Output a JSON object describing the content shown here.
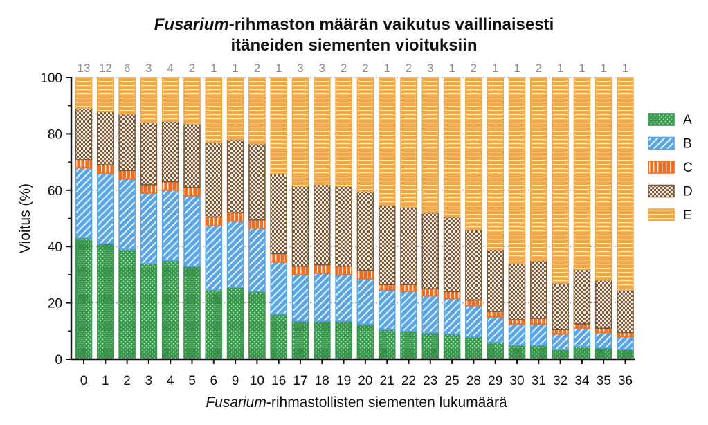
{
  "title_line1_italic": "Fusarium",
  "title_line1_rest": "-rihmaston määrän vaikutus vaillinaisesti",
  "title_line2": "itäneiden siementen vioituksiin",
  "chart_data": {
    "type": "bar",
    "stacked": true,
    "categories": [
      "0",
      "1",
      "2",
      "3",
      "4",
      "5",
      "6",
      "9",
      "10",
      "16",
      "17",
      "18",
      "19",
      "20",
      "21",
      "22",
      "23",
      "25",
      "28",
      "29",
      "30",
      "31",
      "32",
      "34",
      "35",
      "36"
    ],
    "counts": [
      "13",
      "12",
      "6",
      "3",
      "4",
      "2",
      "1",
      "1",
      "2",
      "1",
      "3",
      "3",
      "2",
      "2",
      "1",
      "2",
      "3",
      "1",
      "2",
      "1",
      "1",
      "2",
      "1",
      "1",
      "1",
      "1"
    ],
    "series": [
      {
        "name": "A",
        "color": "#3a9a4e",
        "pattern": "dots",
        "values": [
          43,
          41,
          39,
          34,
          35,
          33,
          24.5,
          25.5,
          24,
          16,
          13.5,
          13.5,
          13.5,
          12.5,
          10.5,
          10,
          9.5,
          9,
          8,
          6,
          5,
          5,
          3.5,
          4.5,
          4,
          3.5
        ]
      },
      {
        "name": "B",
        "color": "#5aa5e8",
        "pattern": "diagonal",
        "values": [
          25,
          25,
          25,
          25,
          25,
          25,
          23,
          23.5,
          22.5,
          18.5,
          16.5,
          17,
          16.5,
          16,
          14,
          14,
          13,
          12.5,
          11,
          9,
          7.5,
          7.5,
          5.5,
          6.5,
          5.5,
          4.5
        ]
      },
      {
        "name": "C",
        "color": "#f07020",
        "pattern": "vertical",
        "values": [
          3,
          3,
          3,
          3,
          3,
          3,
          3,
          3,
          3,
          3,
          3,
          3,
          3,
          3,
          2,
          2.5,
          2.5,
          2.5,
          2,
          2,
          1.5,
          2,
          1.5,
          1.5,
          1.5,
          1.5
        ]
      },
      {
        "name": "D",
        "color": "#7a5a3a",
        "pattern": "checker",
        "values": [
          18,
          19,
          20,
          22,
          21.5,
          22.5,
          26.5,
          26,
          27,
          28.5,
          28.5,
          28.5,
          28.5,
          28,
          28,
          27.5,
          27,
          26.5,
          25,
          22,
          20,
          20.5,
          16.5,
          19.5,
          17,
          15
        ]
      },
      {
        "name": "E",
        "color": "#f0a848",
        "pattern": "hstripes",
        "values": [
          11,
          12,
          13,
          16,
          15.5,
          16.5,
          23,
          22,
          23.5,
          34,
          38.5,
          38,
          38.5,
          40.5,
          45.5,
          46,
          48,
          49.5,
          54,
          61,
          66,
          65,
          73,
          68,
          72,
          75.5
        ]
      }
    ],
    "xlabel_italic": "Fusarium",
    "xlabel_rest": "-rihmastollisten siementen lukumäärä",
    "ylabel": "Vioitus (%)",
    "ylim": [
      0,
      100
    ],
    "yticks": [
      "0",
      "20",
      "40",
      "60",
      "80",
      "100"
    ],
    "grid": true,
    "legend_position": "right"
  }
}
